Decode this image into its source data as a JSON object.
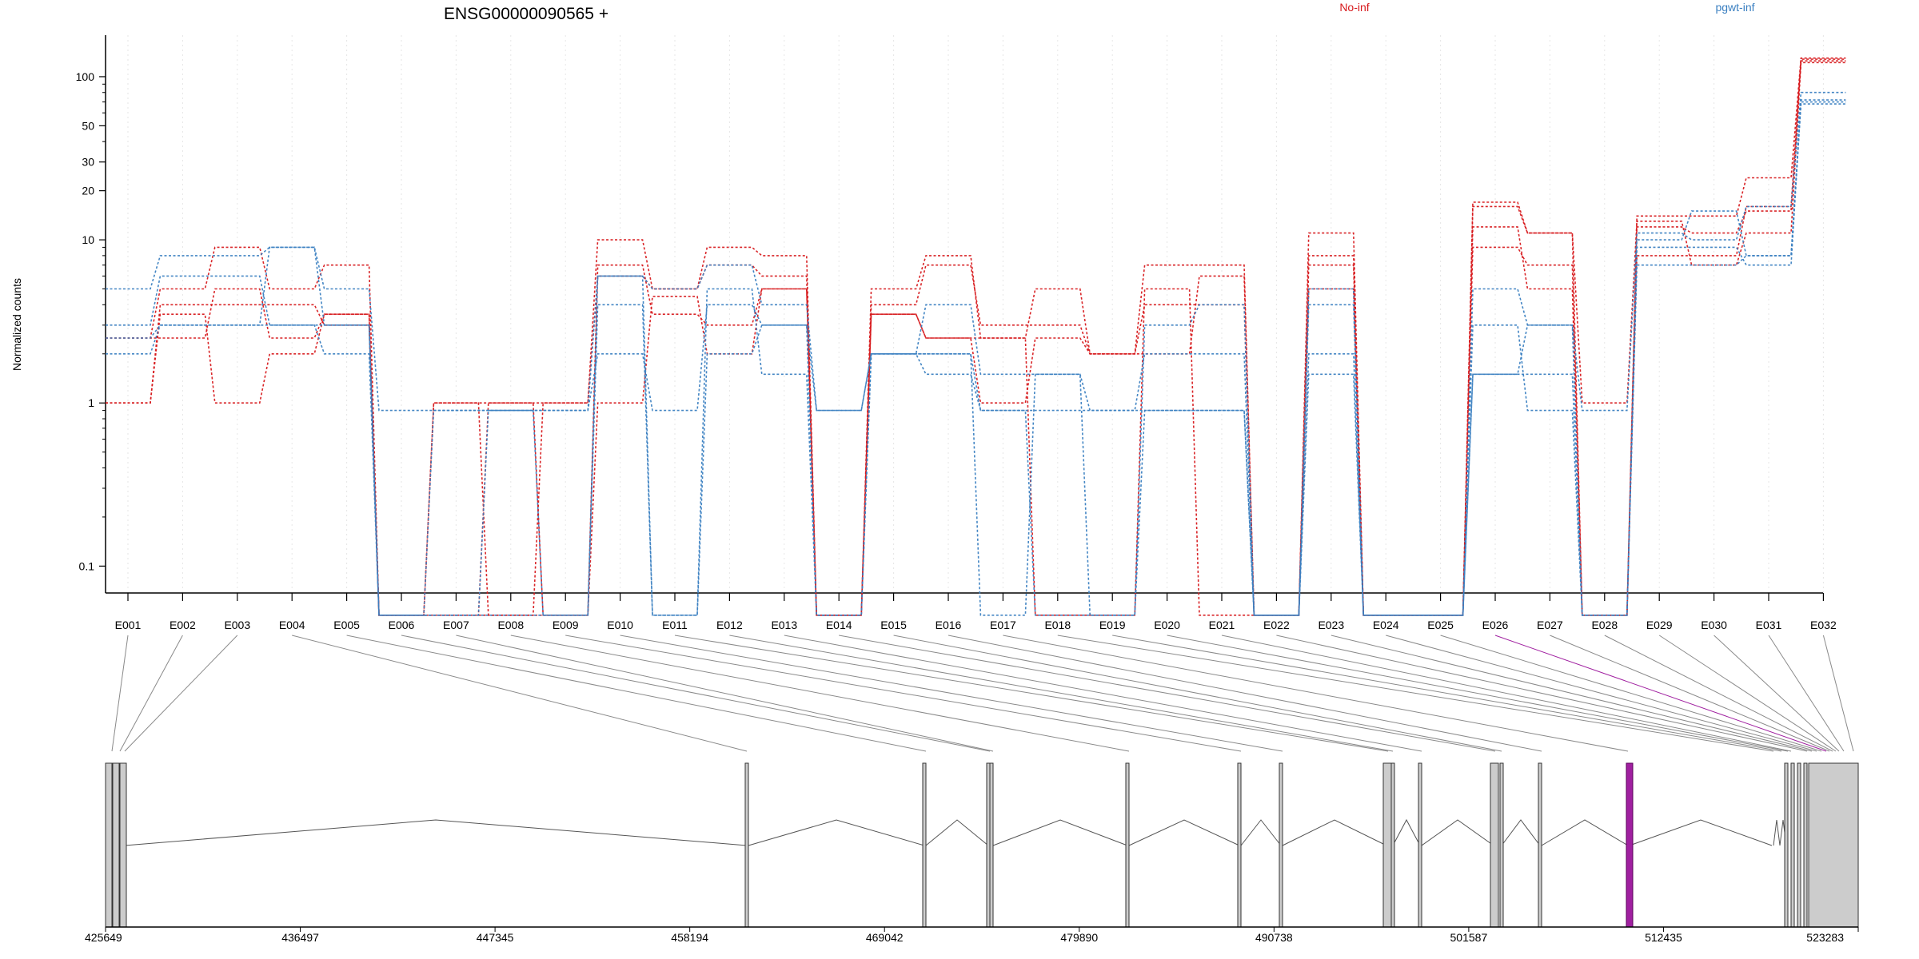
{
  "chart_data": {
    "type": "line",
    "title": "ENSG00000090565 +",
    "ylabel": "Normalized counts",
    "xlabel": "",
    "y_scale": "log",
    "yticks": [
      0.1,
      1,
      10,
      20,
      30,
      50,
      100
    ],
    "ytick_labels": [
      "0.1",
      "1",
      "10",
      "20",
      "30",
      "50",
      "100"
    ],
    "ylim": [
      0.07,
      150
    ],
    "grid": "vertical dotted per exon",
    "legend_placement": "top",
    "categories": [
      "E001",
      "E002",
      "E003",
      "E004",
      "E005",
      "E006",
      "E007",
      "E008",
      "E009",
      "E010",
      "E011",
      "E012",
      "E013",
      "E014",
      "E015",
      "E016",
      "E017",
      "E018",
      "E019",
      "E020",
      "E021",
      "E022",
      "E023",
      "E024",
      "E025",
      "E026",
      "E027",
      "E028",
      "E029",
      "E030",
      "E031",
      "E032"
    ],
    "groups": [
      {
        "name": "No-inf",
        "color": "#d7191c"
      },
      {
        "name": "pgwt-inf",
        "color": "#3a7fc1"
      }
    ],
    "series": [
      {
        "group": 0,
        "values": [
          1,
          4,
          4,
          4,
          3,
          0.05,
          1,
          1,
          1,
          6,
          5,
          7,
          6,
          0.05,
          4,
          7,
          3,
          3,
          2,
          4,
          4,
          0.05,
          8,
          0.05,
          0.05,
          17,
          11,
          0.05,
          12,
          11,
          15,
          125
        ]
      },
      {
        "group": 0,
        "values": [
          2.5,
          5,
          9,
          5,
          7,
          0.05,
          0.05,
          0.05,
          1,
          10,
          5,
          9,
          8,
          0.05,
          5,
          8,
          2.5,
          5,
          2,
          7,
          7,
          0.05,
          11,
          0.05,
          0.05,
          12,
          5,
          0.05,
          14,
          14,
          24,
          130
        ]
      },
      {
        "group": 0,
        "values": [
          1,
          3.5,
          1,
          2,
          3.5,
          0.05,
          0.05,
          1,
          0.05,
          7,
          3.5,
          3,
          5,
          0.05,
          3.5,
          2.5,
          2.5,
          0.05,
          0.05,
          5,
          0.05,
          0.05,
          5,
          0.05,
          0.05,
          16,
          11,
          1,
          13,
          7,
          11,
          122
        ]
      },
      {
        "group": 0,
        "values": [
          2.5,
          2.5,
          5,
          2.5,
          3.5,
          0.05,
          1,
          0.05,
          0.05,
          1,
          4.5,
          2,
          5,
          0.05,
          3.5,
          2.5,
          1,
          2.5,
          2,
          2,
          6,
          0.05,
          7,
          0.05,
          0.05,
          9,
          7,
          0.05,
          8,
          8,
          16,
          128
        ]
      },
      {
        "group": 1,
        "values": [
          5,
          8,
          8,
          9,
          5,
          0.9,
          0.9,
          0.9,
          0.9,
          6,
          5,
          7,
          4,
          0.9,
          2,
          4,
          1.5,
          1.5,
          0.9,
          2,
          2,
          0.05,
          5,
          0.05,
          0.05,
          5,
          3,
          0.9,
          11,
          10,
          16,
          80
        ]
      },
      {
        "group": 1,
        "values": [
          3,
          6,
          6,
          3,
          3,
          0.05,
          0.9,
          0.9,
          0.9,
          2,
          0.9,
          4,
          3,
          0.9,
          2,
          2,
          0.9,
          0.9,
          0.9,
          0.9,
          0.9,
          0.05,
          1.5,
          0.05,
          0.05,
          1.5,
          1.5,
          0.05,
          9,
          9,
          7,
          70
        ]
      },
      {
        "group": 1,
        "values": [
          2,
          3,
          3,
          3,
          2,
          0.05,
          0.05,
          0.05,
          0.05,
          4,
          0.05,
          2,
          3,
          0.05,
          2,
          1.5,
          0.9,
          0.05,
          0.05,
          3,
          4,
          0.05,
          4,
          0.05,
          0.05,
          3,
          0.9,
          0.05,
          7,
          7,
          8,
          68
        ]
      },
      {
        "group": 1,
        "values": [
          2.5,
          3,
          3,
          9,
          3,
          0.05,
          0.05,
          0.9,
          0.05,
          6,
          0.05,
          5,
          1.5,
          0.05,
          2,
          2,
          0.05,
          1.5,
          0.05,
          0.9,
          0.9,
          0.05,
          2,
          0.05,
          0.05,
          1.5,
          3,
          0.05,
          10,
          15,
          8,
          72
        ]
      }
    ],
    "gene_model": {
      "axis_ticks": [
        "425649",
        "436497",
        "447345",
        "458194",
        "469042",
        "479890",
        "490738",
        "501587",
        "512435",
        "523283"
      ],
      "highlight_exon": "E026",
      "highlight_color": "#a020a0"
    }
  }
}
